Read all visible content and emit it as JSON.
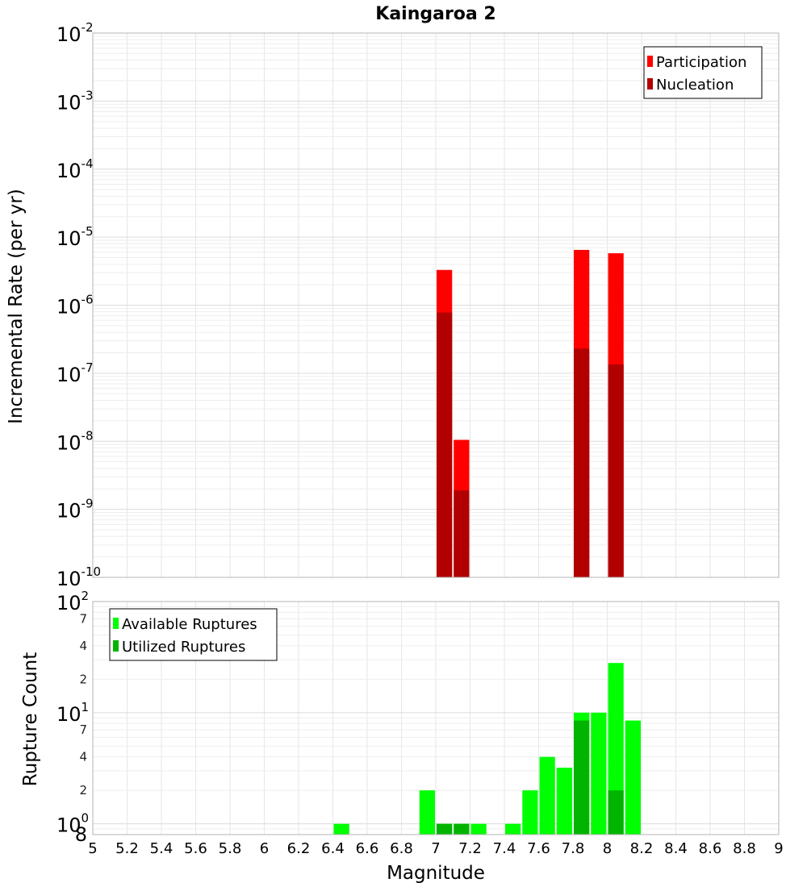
{
  "title": "Kaingaroa 2",
  "colors": {
    "participation": "#ff0000",
    "nucleation": "#b20000",
    "available": "#00ff00",
    "utilized": "#00b400",
    "grid": "#e6e6e6",
    "frame": "#b4b4b4"
  },
  "chart_data": [
    {
      "type": "bar",
      "title": "Kaingaroa 2",
      "ylabel": "Incremental Rate (per yr)",
      "xlabel": "",
      "xlim": [
        5,
        9
      ],
      "ylim": [
        1e-10,
        0.01
      ],
      "y_scale": "log",
      "grid": true,
      "legend_position": "top-right",
      "bin_width": 0.1,
      "y_major_ticks": [
        {
          "value": 1e-10,
          "base": "10",
          "exp": "-10"
        },
        {
          "value": 1e-09,
          "base": "10",
          "exp": "-9"
        },
        {
          "value": 1e-08,
          "base": "10",
          "exp": "-8"
        },
        {
          "value": 1e-07,
          "base": "10",
          "exp": "-7"
        },
        {
          "value": 1e-06,
          "base": "10",
          "exp": "-6"
        },
        {
          "value": 1e-05,
          "base": "10",
          "exp": "-5"
        },
        {
          "value": 0.0001,
          "base": "10",
          "exp": "-4"
        },
        {
          "value": 0.001,
          "base": "10",
          "exp": "-3"
        },
        {
          "value": 0.01,
          "base": "10",
          "exp": "-2"
        }
      ],
      "series": [
        {
          "name": "Participation",
          "x": [
            7.05,
            7.15,
            7.85,
            8.05
          ],
          "values": [
            3.3e-06,
            1.05e-08,
            6.5e-06,
            5.8e-06
          ]
        },
        {
          "name": "Nucleation",
          "x": [
            7.05,
            7.15,
            7.85,
            8.05
          ],
          "values": [
            7.8e-07,
            1.9e-09,
            2.3e-07,
            1.35e-07
          ]
        }
      ]
    },
    {
      "type": "bar",
      "ylabel": "Rupture Count",
      "xlabel": "Magnitude",
      "xlim": [
        5,
        9
      ],
      "ylim": [
        0.8,
        100
      ],
      "y_scale": "log",
      "grid": true,
      "legend_position": "top-left",
      "bin_width": 0.1,
      "x_ticks": [
        "5",
        "5.2",
        "5.4",
        "5.6",
        "5.8",
        "6",
        "6.2",
        "6.4",
        "6.6",
        "6.8",
        "7",
        "7.2",
        "7.4",
        "7.6",
        "7.8",
        "8",
        "8.2",
        "8.4",
        "8.6",
        "8.8",
        "9"
      ],
      "y_major_ticks": [
        {
          "value": 1,
          "base": "10",
          "exp": "0"
        },
        {
          "value": 10,
          "base": "10",
          "exp": "1"
        },
        {
          "value": 100,
          "base": "10",
          "exp": "2"
        }
      ],
      "y_minor_ticks": [
        {
          "value": 0.8,
          "label": "8"
        },
        {
          "value": 2,
          "label": "2"
        },
        {
          "value": 4,
          "label": "4"
        },
        {
          "value": 7,
          "label": "7"
        },
        {
          "value": 20,
          "label": "2"
        },
        {
          "value": 40,
          "label": "4"
        },
        {
          "value": 70,
          "label": "7"
        }
      ],
      "series": [
        {
          "name": "Available Ruptures",
          "x": [
            6.45,
            6.95,
            7.05,
            7.15,
            7.25,
            7.45,
            7.55,
            7.65,
            7.75,
            7.85,
            7.95,
            8.05,
            8.15
          ],
          "values": [
            1,
            2,
            1,
            1,
            1,
            1,
            2,
            4,
            3.2,
            10,
            10,
            28,
            8.5
          ]
        },
        {
          "name": "Utilized Ruptures",
          "x": [
            7.05,
            7.15,
            7.85,
            8.05
          ],
          "values": [
            1,
            1,
            8.5,
            2
          ]
        }
      ]
    }
  ]
}
